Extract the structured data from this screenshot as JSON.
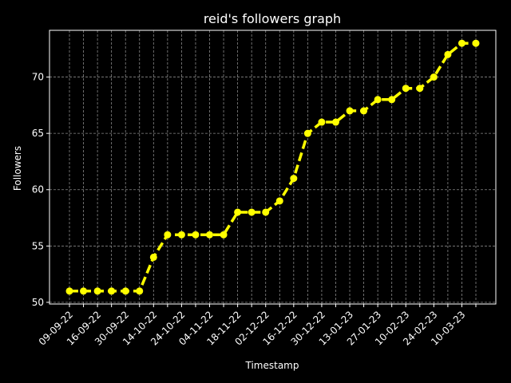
{
  "chart_data": {
    "type": "line",
    "title": "reid's followers graph",
    "xlabel": "Timestamp",
    "ylabel": "Followers",
    "x_tick_labels": [
      "09-09-22",
      "16-09-22",
      "30-09-22",
      "14-10-22",
      "24-10-22",
      "04-11-22",
      "18-11-22",
      "02-12-22",
      "16-12-22",
      "30-12-22",
      "13-01-23",
      "27-01-23",
      "10-02-23",
      "24-02-23",
      "10-03-23"
    ],
    "y_ticks": [
      50,
      55,
      60,
      65,
      70
    ],
    "ylim": [
      49.85,
      74.15
    ],
    "x_count": 30,
    "series": [
      {
        "values": [
          51,
          51,
          51,
          51,
          51,
          51,
          54,
          56,
          56,
          56,
          56,
          56,
          58,
          58,
          58,
          59,
          61,
          65,
          66,
          66,
          67,
          67,
          68,
          68,
          69,
          69,
          70,
          72,
          73,
          73
        ],
        "color": "#ffff00",
        "line_style": "dashed",
        "marker": "circle"
      }
    ],
    "grid": true,
    "background": "#000000",
    "axis_color": "#ffffff",
    "grid_color": "#888888"
  }
}
